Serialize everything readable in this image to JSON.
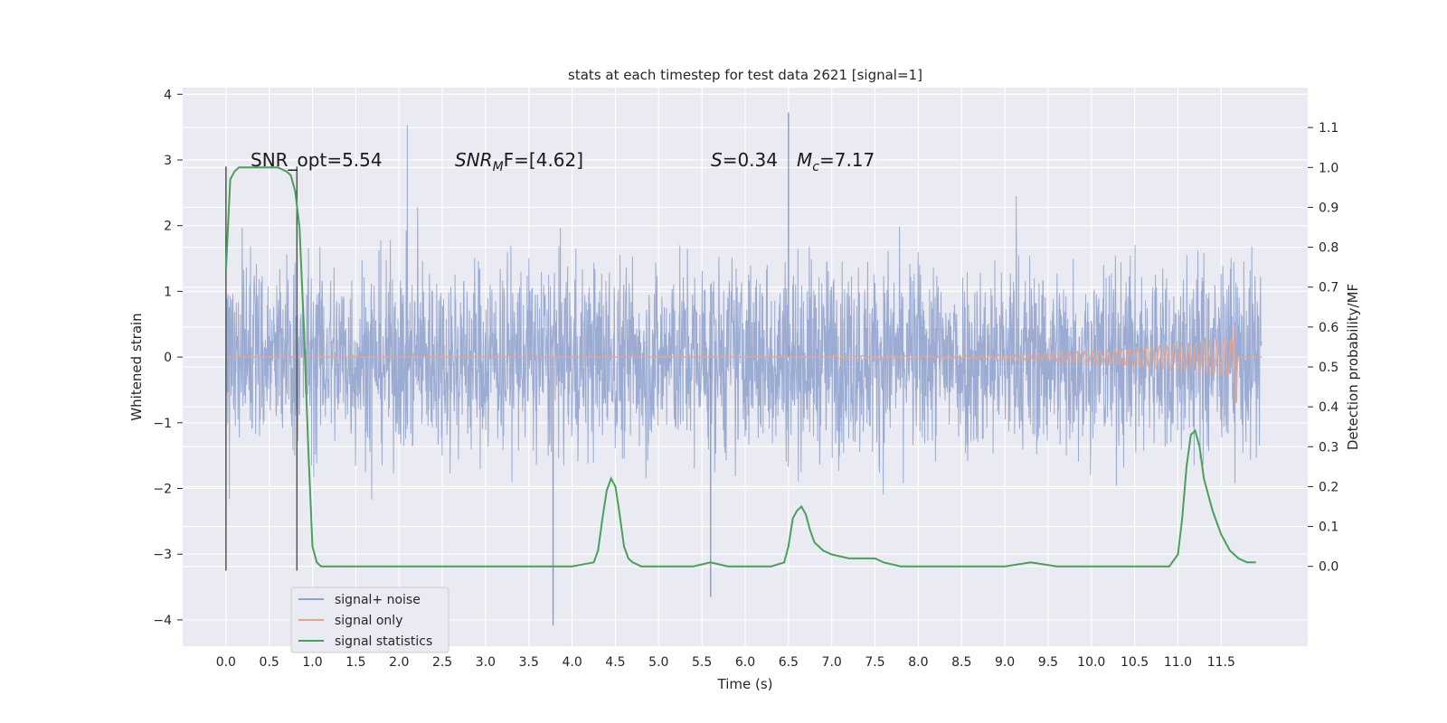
{
  "chart_data": {
    "type": "line",
    "title": "stats at each timestep for test data 2621 [signal=1]",
    "xlabel": "Time (s)",
    "ylabel": "Whitened strain",
    "y2label": "Detection probability/MF",
    "xlim": [
      -0.5,
      12.5
    ],
    "ylim": [
      -4.4,
      4.1
    ],
    "y2lim": [
      -0.2,
      1.2
    ],
    "xticks": [
      0.0,
      0.5,
      1.0,
      1.5,
      2.0,
      2.5,
      3.0,
      3.5,
      4.0,
      4.5,
      5.0,
      5.5,
      6.0,
      6.5,
      7.0,
      7.5,
      8.0,
      8.5,
      9.0,
      9.5,
      10.0,
      10.5,
      11.0,
      11.5
    ],
    "xtick_labels": [
      "0.0",
      "0.5",
      "1.0",
      "1.5",
      "2.0",
      "2.5",
      "3.0",
      "3.5",
      "4.0",
      "4.5",
      "5.0",
      "5.5",
      "6.0",
      "6.5",
      "7.0",
      "7.5",
      "8.0",
      "8.5",
      "9.0",
      "9.5",
      "10.0",
      "10.5",
      "11.0",
      "11.5"
    ],
    "yticks": [
      4,
      3,
      2,
      1,
      0,
      -1,
      -2,
      -3,
      -4
    ],
    "ytick_labels": [
      "4",
      "3",
      "2",
      "1",
      "0",
      "−1",
      "−2",
      "−3",
      "−4"
    ],
    "y2ticks": [
      1.1,
      1.0,
      0.9,
      0.8,
      0.7,
      0.6,
      0.5,
      0.4,
      0.3,
      0.2,
      0.1,
      0.0
    ],
    "y2tick_labels": [
      "1.1",
      "1.0",
      "0.9",
      "0.8",
      "0.7",
      "0.6",
      "0.5",
      "0.4",
      "0.3",
      "0.2",
      "0.1",
      "0.0"
    ],
    "grid": true,
    "legend": {
      "placement": "lower-left",
      "entries": [
        {
          "label": "signal+ noise",
          "color": "#8da0cb"
        },
        {
          "label": "signal only",
          "color": "#e8a48b"
        },
        {
          "label": "signal statistics",
          "color": "#4aa05a"
        }
      ]
    },
    "annotations": {
      "snr_opt": "SNR_opt=5.54",
      "snr_mf_base": "SNR",
      "snr_mf_sub": "M",
      "snr_mf_tail": "F=[4.62]",
      "s_var": "S",
      "s_val": "=0.34",
      "mc_var": "M",
      "mc_sub": "c",
      "mc_val": "=7.17"
    },
    "vlines": [
      0.0,
      0.82
    ],
    "vline_range": [
      -3.25,
      2.9
    ],
    "noise": {
      "x_range": [
        0.0,
        11.97
      ],
      "envelope_max": 3.72,
      "envelope_min": -4.08,
      "color": "#8da0cb"
    },
    "signal_only": {
      "x_start": 7.0,
      "x_peak": 11.65,
      "peak_amplitude": 0.48,
      "min_at_peak": -0.7,
      "x_end": 11.97,
      "color": "#e8a48b"
    },
    "signal_statistics": {
      "color": "#4aa05a",
      "x": [
        0.0,
        0.05,
        0.1,
        0.15,
        0.2,
        0.3,
        0.4,
        0.5,
        0.6,
        0.7,
        0.75,
        0.8,
        0.85,
        0.9,
        0.95,
        1.0,
        1.05,
        1.1,
        1.2,
        1.5,
        2.0,
        3.0,
        4.0,
        4.25,
        4.3,
        4.35,
        4.4,
        4.45,
        4.5,
        4.55,
        4.6,
        4.65,
        4.7,
        4.8,
        5.0,
        5.4,
        5.6,
        5.8,
        6.0,
        6.3,
        6.45,
        6.5,
        6.55,
        6.6,
        6.65,
        6.7,
        6.75,
        6.8,
        6.9,
        7.0,
        7.2,
        7.5,
        7.6,
        7.8,
        8.0,
        8.5,
        9.0,
        9.3,
        9.6,
        10.0,
        10.5,
        10.9,
        11.0,
        11.05,
        11.1,
        11.15,
        11.2,
        11.25,
        11.3,
        11.4,
        11.5,
        11.6,
        11.7,
        11.8,
        11.9
      ],
      "y": [
        0.74,
        0.97,
        0.99,
        1.0,
        1.0,
        1.0,
        1.0,
        1.0,
        1.0,
        0.99,
        0.98,
        0.94,
        0.85,
        0.6,
        0.3,
        0.05,
        0.01,
        0.0,
        0.0,
        0.0,
        0.0,
        0.0,
        0.0,
        0.01,
        0.04,
        0.12,
        0.19,
        0.22,
        0.2,
        0.13,
        0.05,
        0.02,
        0.01,
        0.0,
        0.0,
        0.0,
        0.01,
        0.0,
        0.0,
        0.0,
        0.01,
        0.05,
        0.12,
        0.14,
        0.15,
        0.13,
        0.09,
        0.06,
        0.04,
        0.03,
        0.02,
        0.02,
        0.01,
        0.0,
        0.0,
        0.0,
        0.0,
        0.01,
        0.0,
        0.0,
        0.0,
        0.0,
        0.03,
        0.12,
        0.25,
        0.33,
        0.34,
        0.3,
        0.22,
        0.14,
        0.08,
        0.04,
        0.02,
        0.01,
        0.01
      ]
    }
  }
}
